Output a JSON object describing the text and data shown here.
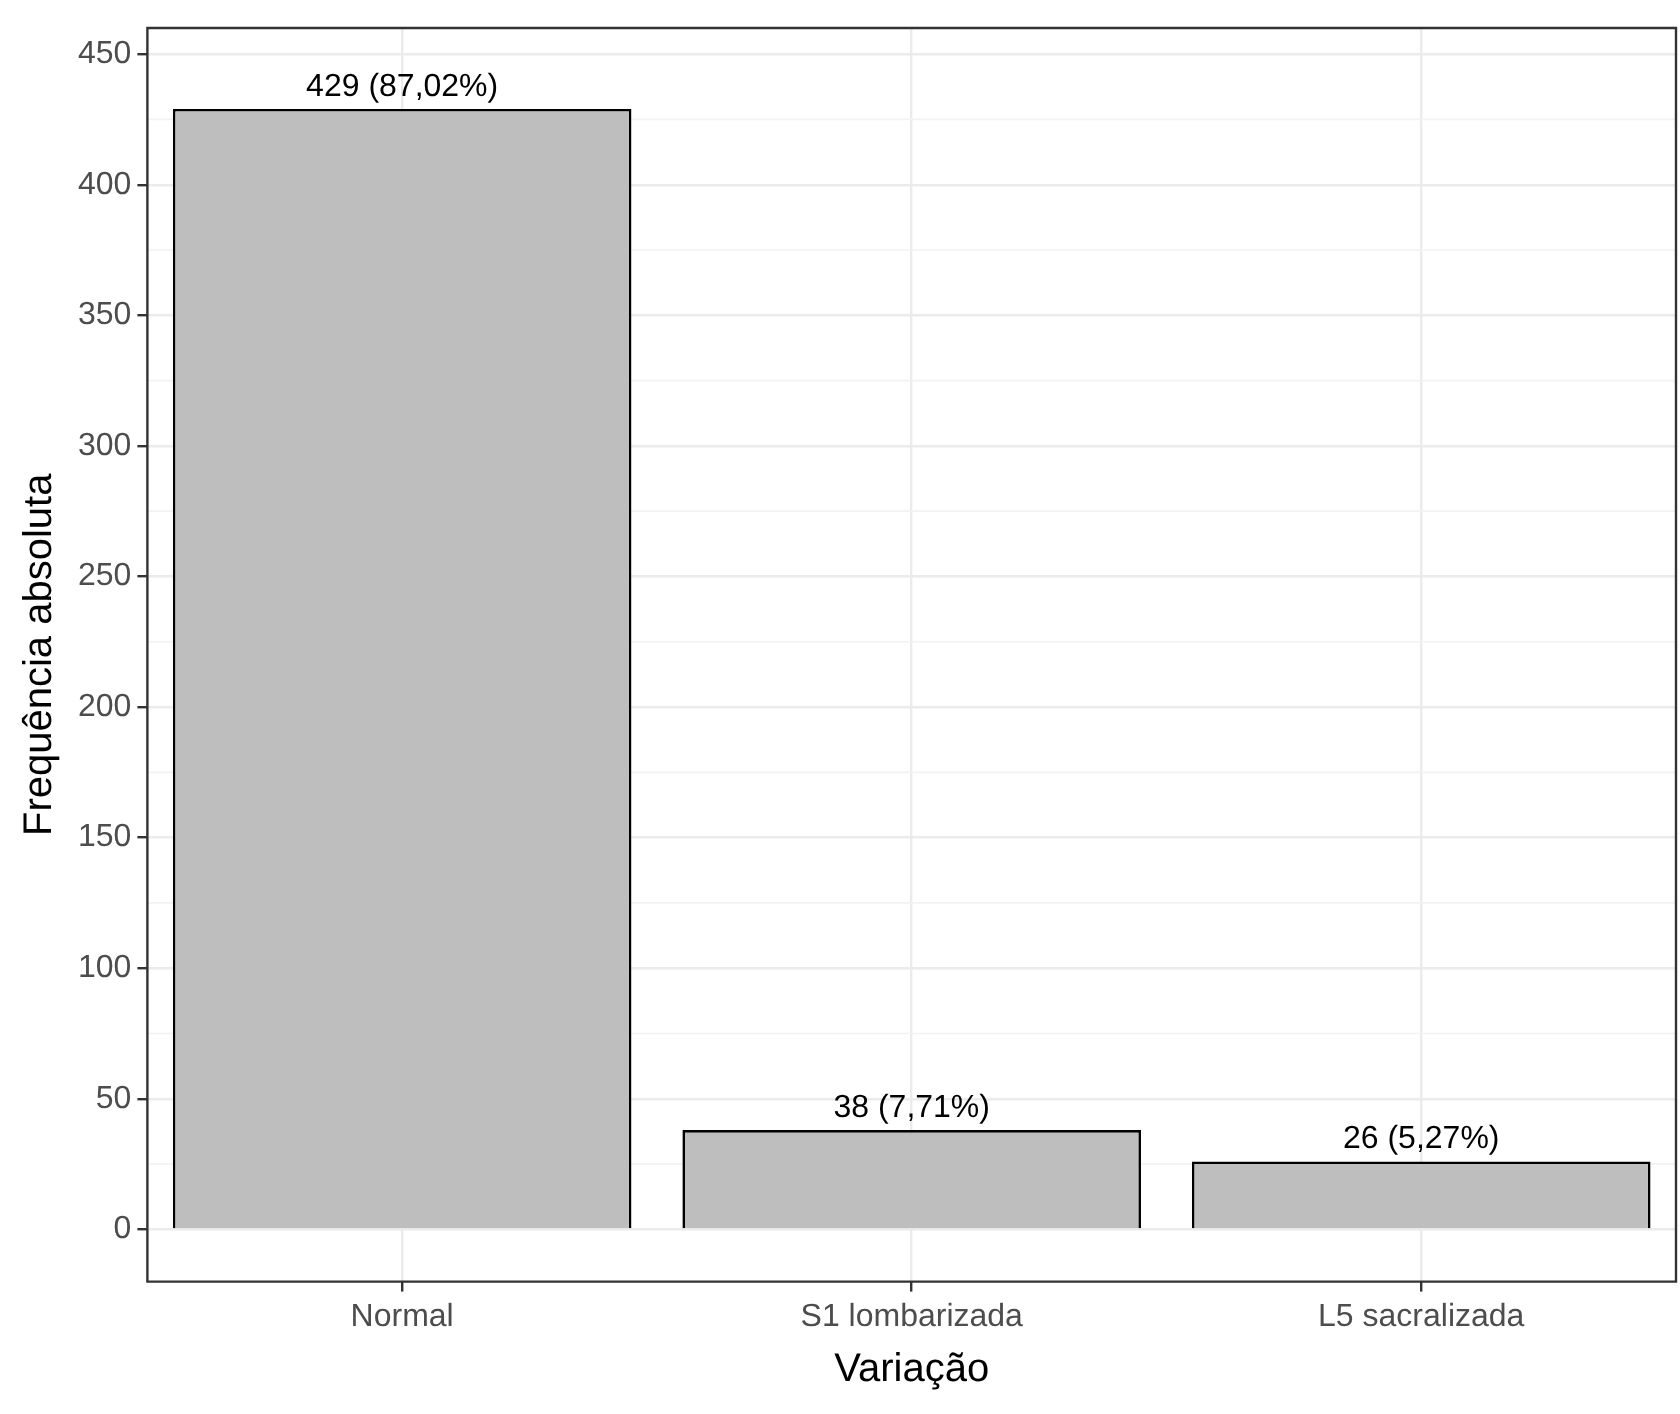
{
  "chart_data": {
    "type": "bar",
    "xlabel": "Variação",
    "ylabel": "Frequência absoluta",
    "categories": [
      "Normal",
      "S1 lombarizada",
      "L5 sacralizada"
    ],
    "values": [
      429,
      38,
      26
    ],
    "color": "#bebebe",
    "value_labels": [
      "429 (87,02%)",
      "38 (7,71%)",
      "26 (5,27%)"
    ],
    "ylim": [
      -20,
      460
    ],
    "yticks": [
      0,
      50,
      100,
      150,
      200,
      250,
      300,
      350,
      400,
      450
    ],
    "grid": true,
    "legend": false
  }
}
